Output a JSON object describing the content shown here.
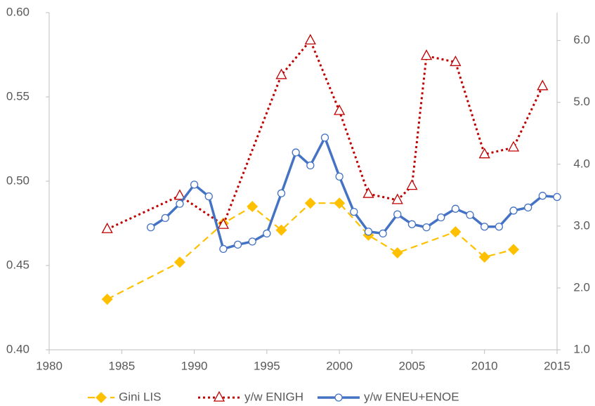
{
  "chart_data": {
    "type": "line",
    "xlim": [
      1980,
      2015
    ],
    "xticks": [
      1980,
      1985,
      1990,
      1995,
      2000,
      2005,
      2010,
      2015
    ],
    "ylim": [
      0.4,
      0.6
    ],
    "yticks": [
      {
        "value": 0.4,
        "label": "0.40"
      },
      0.45,
      {
        "value": 0.5,
        "label": "0.50"
      },
      0.55,
      {
        "value": 0.6,
        "label": "0.60"
      }
    ],
    "y2lim": [
      1.0,
      6.45
    ],
    "y2ticks": [
      {
        "value": 1,
        "label": "1.0"
      },
      {
        "value": 2,
        "label": "2.0"
      },
      {
        "value": 3,
        "label": "3.0"
      },
      {
        "value": 4,
        "label": "4.0"
      },
      {
        "value": 5,
        "label": "5.0"
      },
      {
        "value": 6,
        "label": "6.0"
      }
    ],
    "grid": false,
    "legend": "bottom",
    "series": [
      {
        "name": "Gini LIS",
        "color": "#FFC000",
        "marker": "diamond",
        "dash": "dashed",
        "x": [
          1984,
          1989,
          1992,
          1994,
          1996,
          1998,
          2000,
          2002,
          2004,
          2008,
          2010,
          2012
        ],
        "values": [
          0.43,
          0.452,
          0.475,
          0.485,
          0.471,
          0.487,
          0.487,
          0.468,
          0.4575,
          0.47,
          0.455,
          0.4595
        ]
      },
      {
        "name": "y/w ENIGH",
        "color": "#C00000",
        "marker": "triangle",
        "dash": "dotted",
        "axis": "y2",
        "x": [
          1984,
          1989,
          1992,
          1996,
          1998,
          2000,
          2002,
          2004,
          2005,
          2006,
          2008,
          2010,
          2012,
          2014
        ],
        "values": [
          2.95,
          3.49,
          3.02,
          5.44,
          6.0,
          4.86,
          3.52,
          3.42,
          3.65,
          5.75,
          5.65,
          4.16,
          4.27,
          5.26
        ]
      },
      {
        "name": "y/w ENEU+ENOE",
        "color": "#4472C4",
        "marker": "circle",
        "dash": "solid",
        "axis": "y2",
        "x": [
          1987,
          1988,
          1989,
          1990,
          1991,
          1992,
          1993,
          1994,
          1995,
          1996,
          1997,
          1998,
          1999,
          2000,
          2001,
          2002,
          2003,
          2004,
          2005,
          2006,
          2007,
          2008,
          2009,
          2010,
          2011,
          2012,
          2013,
          2014,
          2015
        ],
        "values": [
          2.98,
          3.13,
          3.36,
          3.67,
          3.48,
          2.63,
          2.7,
          2.75,
          2.88,
          3.53,
          4.19,
          3.98,
          4.43,
          3.8,
          3.23,
          2.91,
          2.88,
          3.19,
          3.03,
          2.98,
          3.14,
          3.28,
          3.18,
          2.99,
          2.99,
          3.25,
          3.3,
          3.49,
          3.47
        ]
      }
    ]
  }
}
